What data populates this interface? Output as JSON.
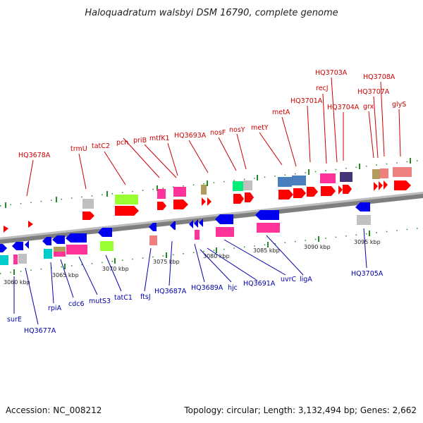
{
  "title": "Haloquadratum walsbyi DSM 16790, complete genome",
  "footer": {
    "accession": "Accession: NC_008212",
    "topology": "Topology: circular; Length: 3,132,494 bp; Genes: 2,662"
  },
  "colors": {
    "forward_label": "#cc0000",
    "reverse_label": "#0000aa",
    "backbone": "#888888",
    "tick": "#228b22"
  },
  "scale_ticks": [
    "3060 kbp",
    "3065 kbp",
    "3070 kbp",
    "3075 kbp",
    "3080 kbp",
    "3085 kbp",
    "3090 kbp",
    "3095 kbp"
  ],
  "forward_labels": [
    "HQ3678A",
    "trmU",
    "tatC2",
    "pcn",
    "priB",
    "mtfK1",
    "HQ3693A",
    "nosF",
    "nosY",
    "metY",
    "metA",
    "HQ3701A",
    "recJ",
    "HQ3703A",
    "HQ3704A",
    "grx",
    "HQ3707A",
    "HQ3708A",
    "glyS"
  ],
  "reverse_labels": [
    "surE",
    "HQ3677A",
    "rpiA",
    "cdc6",
    "mutS3",
    "tatC1",
    "ftsJ",
    "HQ3687A",
    "HQ3689A",
    "hjc",
    "HQ3691A",
    "uvrC",
    "ligA",
    "HQ3705A"
  ]
}
